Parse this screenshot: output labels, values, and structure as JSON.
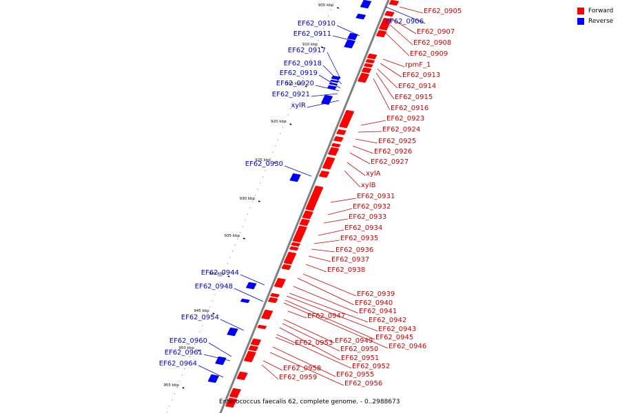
{
  "caption": "Enterococcus faecalis 62, complete genome. - 0..2988673",
  "legend": {
    "forward": {
      "label": "Forward",
      "color": "#ff0000"
    },
    "reverse": {
      "label": "Reverse",
      "color": "#0000ff"
    }
  },
  "colors": {
    "label_forward": "#cc0000",
    "label_reverse": "#0000cc",
    "backbone": "#808080"
  },
  "ticks": [
    "905 kbp",
    "910 kbp",
    "915 kbp",
    "920 kbp",
    "925 kbp",
    "930 kbp",
    "935 kbp",
    "940 kbp",
    "945 kbp",
    "950 kbp",
    "955 kbp"
  ],
  "reverse_genes": [
    "EF62_0906",
    "EF62_0910",
    "EF62_0911",
    "EF62_0917",
    "EF62_0918",
    "EF62_0919",
    "EF62_0920",
    "EF62_0921",
    "xylR",
    "EF62_0930",
    "EF62_0944",
    "EF62_0948",
    "EF62_0954",
    "EF62_0960",
    "EF62_0961",
    "EF62_0964"
  ],
  "forward_genes": [
    "EF62_0905",
    "EF62_0907",
    "EF62_0908",
    "EF62_0909",
    "rpmF_1",
    "EF62_0913",
    "EF62_0914",
    "EF62_0915",
    "EF62_0916",
    "EF62_0923",
    "EF62_0924",
    "EF62_0925",
    "EF62_0926",
    "EF62_0927",
    "xylA",
    "xylB",
    "EF62_0931",
    "EF62_0932",
    "EF62_0933",
    "EF62_0934",
    "EF62_0935",
    "EF62_0936",
    "EF62_0937",
    "EF62_0938",
    "EF62_0939",
    "EF62_0940",
    "EF62_0941",
    "EF62_0942",
    "EF62_0943",
    "EF62_0945",
    "EF62_0946",
    "EF62_0947",
    "EF62_0949",
    "EF62_0950",
    "EF62_0951",
    "EF62_0952",
    "EF62_0953",
    "EF62_0955",
    "EF62_0956",
    "EF62_0958",
    "EF62_0959"
  ]
}
